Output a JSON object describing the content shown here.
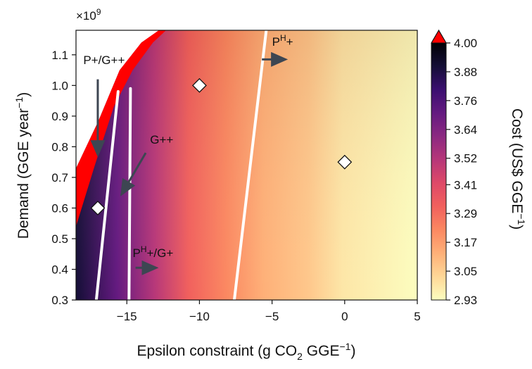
{
  "chart_data": {
    "type": "heatmap",
    "xlabel": {
      "prefix": "Epsilon constraint (g CO",
      "sub": "2",
      "mid": " GGE",
      "sup": "−1",
      "suffix": ")"
    },
    "ylabel": {
      "prefix": "Demand (GGE year",
      "sup": "−1",
      "suffix": ")"
    },
    "y_multiplier": {
      "base": "×10",
      "exp": "9"
    },
    "colorbar_label": {
      "prefix": "Cost (US$ GGE",
      "sup": "−1",
      "suffix": ")"
    },
    "xlim": [
      -18.5,
      5
    ],
    "ylim": [
      0.3,
      1.18
    ],
    "x_ticks": [
      -15,
      -10,
      -5,
      0,
      5
    ],
    "x_tick_labels": [
      "−15",
      "−10",
      "−5",
      "0",
      "5"
    ],
    "y_ticks": [
      0.3,
      0.4,
      0.5,
      0.6,
      0.7,
      0.8,
      0.9,
      1.0,
      1.1
    ],
    "y_tick_labels": [
      "0.3",
      "0.4",
      "0.5",
      "0.6",
      "0.7",
      "0.8",
      "0.9",
      "1.0",
      "1.1"
    ],
    "colorbar": {
      "min": 2.93,
      "max": 4.0,
      "ticks": [
        2.93,
        3.05,
        3.17,
        3.29,
        3.41,
        3.52,
        3.64,
        3.76,
        3.88,
        4.0
      ],
      "tick_labels": [
        "2.93",
        "3.05",
        "3.17",
        "3.29",
        "3.41",
        "3.52",
        "3.64",
        "3.76",
        "3.88",
        "4.00"
      ],
      "extend": "max",
      "colors": [
        "#fcfdbf",
        "#fed797",
        "#feb078",
        "#fb8861",
        "#f1605d",
        "#de4968",
        "#b73779",
        "#8c2981",
        "#641a80",
        "#3b0f70",
        "#140e36",
        "#000004"
      ]
    },
    "infeasible_color": "#ff0000",
    "boundaries": [
      {
        "name": "left-white-boundary",
        "points": [
          [
            -17.1,
            0.3
          ],
          [
            -15.6,
            0.98
          ]
        ]
      },
      {
        "name": "middle-white-boundary",
        "points": [
          [
            -14.85,
            0.3
          ],
          [
            -14.75,
            0.99
          ]
        ]
      },
      {
        "name": "right-white-boundary",
        "points": [
          [
            -7.6,
            0.3
          ],
          [
            -5.4,
            1.18
          ]
        ]
      }
    ],
    "feasibility_front": [
      [
        -18.5,
        0.54
      ],
      [
        -17.2,
        0.74
      ],
      [
        -15.9,
        0.93
      ],
      [
        -14.6,
        1.05
      ],
      [
        -13.2,
        1.14
      ],
      [
        -12.3,
        1.18
      ]
    ],
    "infeasible_outer": [
      [
        -18.5,
        0.73
      ],
      [
        -17.0,
        0.88
      ],
      [
        -15.5,
        1.05
      ],
      [
        -14.0,
        1.14
      ],
      [
        -12.8,
        1.18
      ]
    ],
    "markers": [
      {
        "x": -17.0,
        "y": 0.6
      },
      {
        "x": -10.0,
        "y": 1.0
      },
      {
        "x": 0.0,
        "y": 0.75
      }
    ],
    "annotations": [
      {
        "id": "p-g",
        "text": "P+/G++",
        "sup": "",
        "rest": "",
        "tx": -18.0,
        "ty": 1.07,
        "arrow": [
          [
            -17.0,
            1.02
          ],
          [
            -17.0,
            0.78
          ]
        ]
      },
      {
        "id": "g",
        "text": "G++",
        "sup": "",
        "rest": "",
        "tx": -13.4,
        "ty": 0.81,
        "arrow": [
          [
            -13.7,
            0.78
          ],
          [
            -15.3,
            0.65
          ]
        ]
      },
      {
        "id": "ph",
        "text": "P",
        "sup": "H",
        "rest": "+",
        "tx": -5.0,
        "ty": 1.13,
        "arrow": [
          [
            -5.7,
            1.085
          ],
          [
            -4.2,
            1.085
          ]
        ]
      },
      {
        "id": "ph-g",
        "text": "P",
        "sup": "H",
        "rest": "+/G+",
        "tx": -14.6,
        "ty": 0.44,
        "arrow": [
          [
            -14.4,
            0.405
          ],
          [
            -13.1,
            0.405
          ]
        ]
      }
    ]
  }
}
